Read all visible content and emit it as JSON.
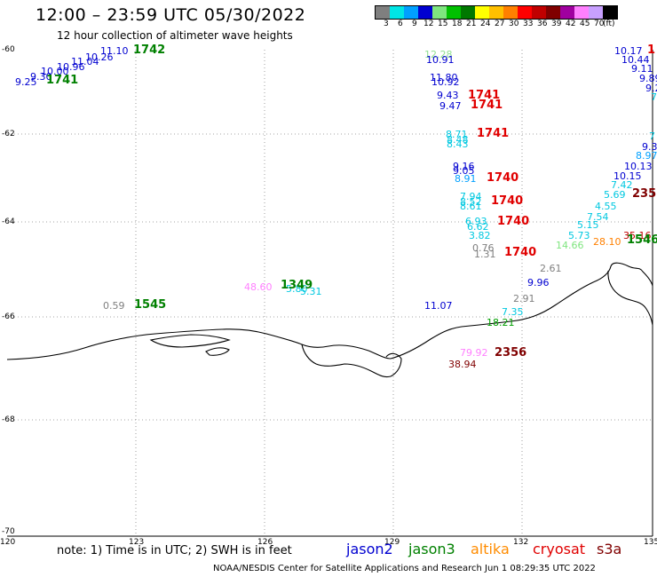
{
  "header": {
    "title": "12:00 – 23:59 UTC 05/30/2022",
    "subtitle": "12 hour collection of altimeter wave heights"
  },
  "legend": {
    "colors": [
      "#7f7f7f",
      "#00e5e5",
      "#00a0ff",
      "#0000d0",
      "#7fe57f",
      "#00c000",
      "#007800",
      "#ffff00",
      "#ffc000",
      "#ff8000",
      "#ff0000",
      "#c00000",
      "#800000",
      "#a000a0",
      "#ff80ff",
      "#c8a0ff",
      "#000000"
    ],
    "labels": [
      "3",
      "6",
      "9",
      "12",
      "15",
      "18",
      "21",
      "24",
      "27",
      "30",
      "33",
      "36",
      "39",
      "42",
      "45",
      "70",
      "(ft)"
    ]
  },
  "axes": {
    "x_ticks": [
      "120",
      "123",
      "126",
      "129",
      "132",
      "135"
    ],
    "y_ticks": [
      "-60",
      "-62",
      "-64",
      "-66",
      "-68",
      "-70"
    ]
  },
  "observations": [
    {
      "t": "12.28",
      "c": "#90e090"
    },
    {
      "t": "10.91",
      "c": "#0000d0"
    },
    {
      "t": "11.80",
      "c": "#0000d0"
    },
    {
      "t": "10.92",
      "c": "#0000d0"
    },
    {
      "t": "9.43",
      "c": "#0000d0"
    },
    {
      "t": "9.47",
      "c": "#0000d0"
    },
    {
      "t": "8.71",
      "c": "#00c8e0"
    },
    {
      "t": "8.48",
      "c": "#00c8e0"
    },
    {
      "t": "8.43",
      "c": "#00c8e0"
    },
    {
      "t": "9.16",
      "c": "#0000d0"
    },
    {
      "t": "9.05",
      "c": "#0000d0"
    },
    {
      "t": "8.91",
      "c": "#00a0ff"
    },
    {
      "t": "7.94",
      "c": "#00c8e0"
    },
    {
      "t": "8.52",
      "c": "#00c8e0"
    },
    {
      "t": "8.61",
      "c": "#00c8e0"
    },
    {
      "t": "6.93",
      "c": "#00c8e0"
    },
    {
      "t": "6.62",
      "c": "#00c8e0"
    },
    {
      "t": "3.82",
      "c": "#00c8e0"
    },
    {
      "t": "0.76",
      "c": "#7f7f7f"
    },
    {
      "t": "1.31",
      "c": "#7f7f7f"
    },
    {
      "t": "2.61",
      "c": "#7f7f7f"
    },
    {
      "t": "9.96",
      "c": "#0000d0"
    },
    {
      "t": "2.91",
      "c": "#7f7f7f"
    },
    {
      "t": "7.35",
      "c": "#00c8e0"
    },
    {
      "t": "18.21",
      "c": "#00a000"
    },
    {
      "t": "11.07",
      "c": "#0000d0"
    },
    {
      "t": "79.92",
      "c": "#ff80ff"
    },
    {
      "t": "38.94",
      "c": "#800000"
    },
    {
      "t": "10.17",
      "c": "#0000d0"
    },
    {
      "t": "10.44",
      "c": "#0000d0"
    },
    {
      "t": "9.11",
      "c": "#0000d0"
    },
    {
      "t": "9.89",
      "c": "#0000d0"
    },
    {
      "t": "9.2",
      "c": "#0000d0"
    },
    {
      "t": "7",
      "c": "#00c8e0"
    },
    {
      "t": "7",
      "c": "#00c8e0"
    },
    {
      "t": "9.3",
      "c": "#0000d0"
    },
    {
      "t": "8.97",
      "c": "#00a0ff"
    },
    {
      "t": "10.13",
      "c": "#0000d0"
    },
    {
      "t": "10.15",
      "c": "#0000d0"
    },
    {
      "t": "7.42",
      "c": "#00c8e0"
    },
    {
      "t": "5.69",
      "c": "#00c8e0"
    },
    {
      "t": "4.55",
      "c": "#00c8e0"
    },
    {
      "t": "7.54",
      "c": "#00c8e0"
    },
    {
      "t": "5.15",
      "c": "#00c8e0"
    },
    {
      "t": "5.73",
      "c": "#00c8e0"
    },
    {
      "t": "14.66",
      "c": "#7fe57f"
    },
    {
      "t": "28.10",
      "c": "#ff8000"
    },
    {
      "t": "35.16",
      "c": "#c00000"
    },
    {
      "t": "11.10",
      "c": "#0000d0"
    },
    {
      "t": "10.26",
      "c": "#0000d0"
    },
    {
      "t": "11.04",
      "c": "#0000d0"
    },
    {
      "t": "10.96",
      "c": "#0000d0"
    },
    {
      "t": "10.00",
      "c": "#0000d0"
    },
    {
      "t": "9.30",
      "c": "#0000d0"
    },
    {
      "t": "9.25",
      "c": "#0000d0"
    },
    {
      "t": "48.60",
      "c": "#ff80ff"
    },
    {
      "t": "5.80",
      "c": "#00c8e0"
    },
    {
      "t": "5.31",
      "c": "#00c8e0"
    },
    {
      "t": "0.59",
      "c": "#7f7f7f"
    }
  ],
  "time_stamps": [
    {
      "t": "1742",
      "c": "#008000"
    },
    {
      "t": "1741",
      "c": "#008000"
    },
    {
      "t": "1741",
      "c": "#e00000"
    },
    {
      "t": "1741",
      "c": "#e00000"
    },
    {
      "t": "1741",
      "c": "#e00000"
    },
    {
      "t": "1740",
      "c": "#e00000"
    },
    {
      "t": "1740",
      "c": "#e00000"
    },
    {
      "t": "1740",
      "c": "#e00000"
    },
    {
      "t": "1740",
      "c": "#e00000"
    },
    {
      "t": "1349",
      "c": "#008000"
    },
    {
      "t": "1545",
      "c": "#008000"
    },
    {
      "t": "2356",
      "c": "#800000"
    },
    {
      "t": "235",
      "c": "#800000"
    },
    {
      "t": "1546",
      "c": "#008000"
    },
    {
      "t": "1",
      "c": "#e00000"
    }
  ],
  "footer": {
    "note": "note:  1) Time is in UTC;  2) SWH is in feet",
    "missions": [
      {
        "name": "jason2",
        "color": "#0000d0"
      },
      {
        "name": "jason3",
        "color": "#008000"
      },
      {
        "name": "altika",
        "color": "#ff8c00"
      },
      {
        "name": "cryosat",
        "color": "#e00000"
      },
      {
        "name": "s3a",
        "color": "#800000"
      }
    ],
    "credit": "NOAA/NESDIS Center for Satellite Applications and Research    Jun  1 08:29:35 UTC 2022"
  }
}
